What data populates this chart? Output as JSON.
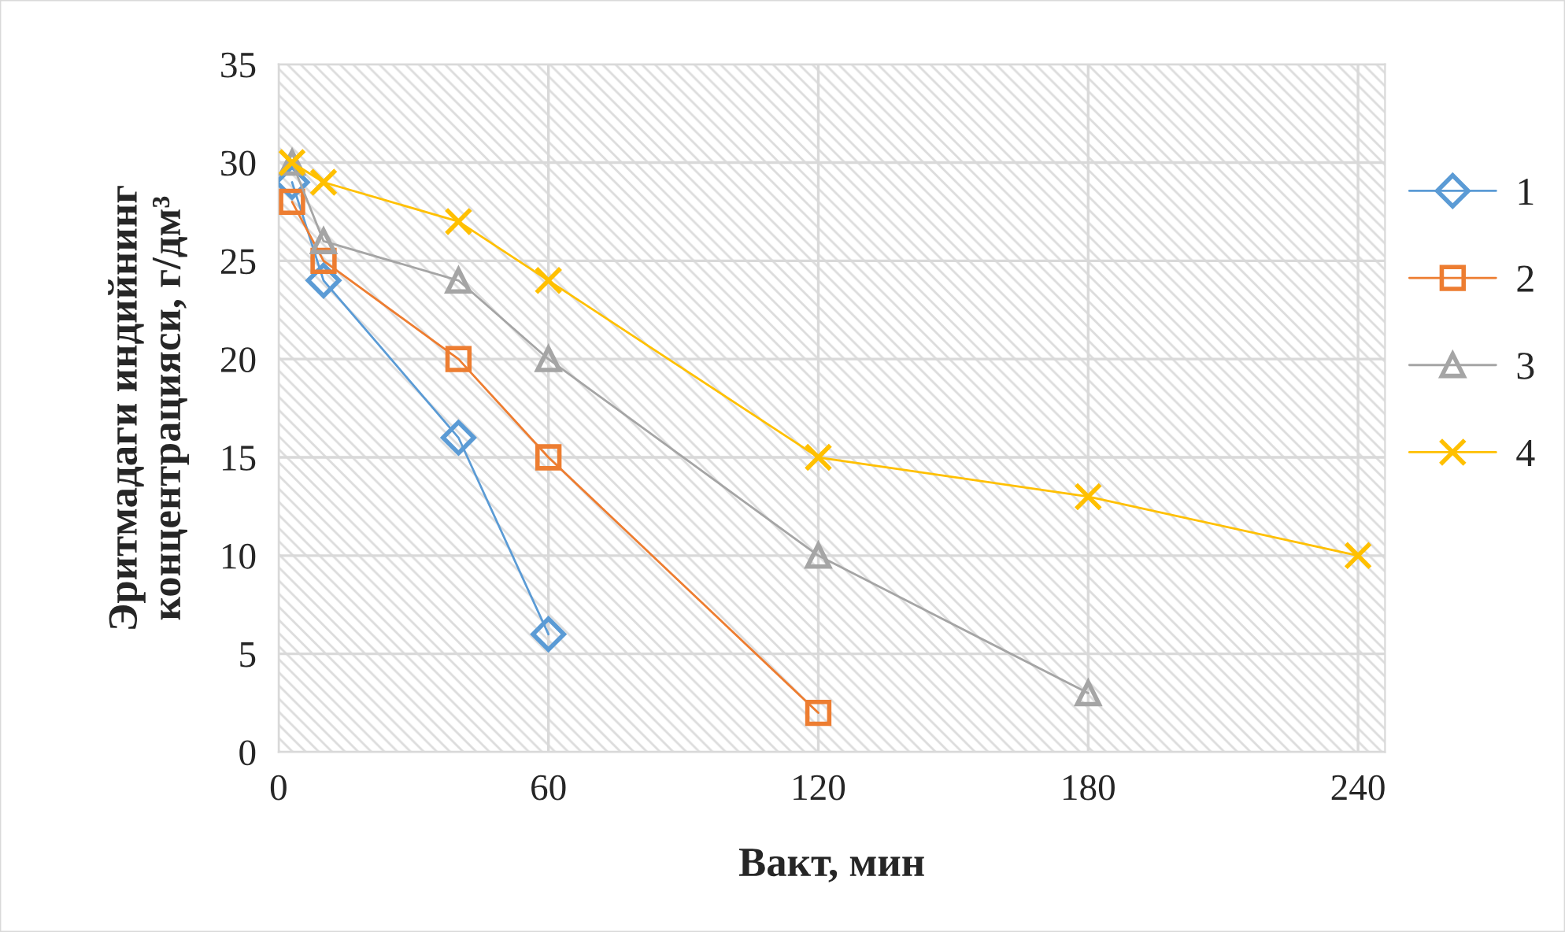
{
  "chart_data": {
    "type": "line",
    "xlabel": "Вакт, мин",
    "ylabel": "Эритмадаги индийнинг\nконцентрацияси, г/дм³",
    "xlim": [
      0,
      246
    ],
    "xticks": [
      0,
      60,
      120,
      180,
      240
    ],
    "ylim": [
      0,
      35
    ],
    "yticks": [
      0,
      5,
      10,
      15,
      20,
      25,
      30,
      35
    ],
    "grid": true,
    "legend": "right",
    "series": [
      {
        "name": "1",
        "color": "#5b9bd5",
        "marker": "diamond",
        "x": [
          3,
          10,
          40,
          60
        ],
        "values": [
          29,
          24,
          16,
          6
        ]
      },
      {
        "name": "2",
        "color": "#ed7d31",
        "marker": "square",
        "x": [
          3,
          10,
          40,
          60,
          120
        ],
        "values": [
          28,
          25,
          20,
          15,
          2
        ]
      },
      {
        "name": "3",
        "color": "#a5a5a5",
        "marker": "triangle",
        "x": [
          3,
          10,
          40,
          60,
          120,
          180
        ],
        "values": [
          30,
          26,
          24,
          20,
          10,
          3
        ]
      },
      {
        "name": "4",
        "color": "#ffc000",
        "marker": "cross",
        "x": [
          3,
          10,
          40,
          60,
          120,
          180,
          240
        ],
        "values": [
          30,
          29,
          27,
          24,
          15,
          13,
          10
        ]
      }
    ]
  }
}
